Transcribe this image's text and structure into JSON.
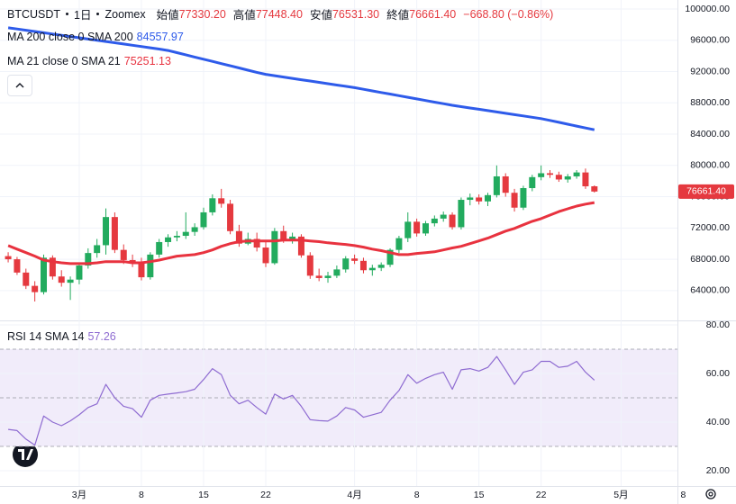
{
  "header": {
    "symbol": "BTCUSDT",
    "interval": "1日",
    "exchange": "Zoomex",
    "ohlc": [
      {
        "label": "始値",
        "value": "77330.20"
      },
      {
        "label": "高値",
        "value": "77448.40"
      },
      {
        "label": "安値",
        "value": "76531.30"
      },
      {
        "label": "終値",
        "value": "76661.40"
      }
    ],
    "change": "−668.80 (−0.86%)"
  },
  "chart_data": [
    {
      "type": "candlestick",
      "x": [
        52,
        53,
        54,
        55,
        56,
        57,
        58,
        59,
        60,
        61,
        62,
        63,
        64,
        65,
        66,
        67,
        68,
        69,
        70,
        71,
        72,
        73,
        74,
        75,
        76,
        77,
        78,
        79,
        80,
        81,
        82,
        83,
        84,
        85,
        86,
        87,
        88,
        89,
        90,
        91,
        92,
        93,
        94,
        95,
        96,
        97,
        98,
        99,
        100,
        101,
        102,
        103,
        104,
        105,
        106,
        107,
        108,
        109,
        110,
        111,
        112,
        113,
        114,
        115,
        116,
        117,
        118
      ],
      "xlim": [
        51.08,
        127.35
      ],
      "xticks": [
        {
          "value": 60,
          "label": "3月"
        },
        {
          "value": 67,
          "label": "8"
        },
        {
          "value": 74,
          "label": "15"
        },
        {
          "value": 81,
          "label": "22"
        },
        {
          "value": 91,
          "label": "4月"
        },
        {
          "value": 98,
          "label": "8"
        },
        {
          "value": 105,
          "label": "15"
        },
        {
          "value": 112,
          "label": "22"
        },
        {
          "value": 121,
          "label": "5月"
        },
        {
          "value": 128,
          "label": "8"
        }
      ],
      "ylim": [
        60300,
        101150
      ],
      "yticks": [
        {
          "value": 64000,
          "label": "64000.00"
        },
        {
          "value": 68000,
          "label": "68000.00"
        },
        {
          "value": 72000,
          "label": "72000.00"
        },
        {
          "value": 76000,
          "label": "76000.00"
        },
        {
          "value": 80000,
          "label": "80000.00"
        },
        {
          "value": 84000,
          "label": "84000.00"
        },
        {
          "value": 88000,
          "label": "88000.00"
        },
        {
          "value": 92000,
          "label": "92000.00"
        },
        {
          "value": 96000,
          "label": "96000.00"
        },
        {
          "value": 100000,
          "label": "100000.00"
        }
      ],
      "grid": true,
      "up_color": "#22ab5e",
      "down_color": "#e5393f",
      "open": [
        68400,
        68000,
        66300,
        64600,
        63800,
        68200,
        65800,
        65000,
        65400,
        67200,
        68800,
        69800,
        73400,
        69200,
        67900,
        67500,
        65700,
        68600,
        70200,
        70800,
        71000,
        71500,
        72100,
        74000,
        75800,
        75100,
        71600,
        70000,
        70600,
        69500,
        67500,
        71600,
        70500,
        70900,
        68500,
        65900,
        65600,
        65900,
        66700,
        68100,
        67800,
        66600,
        66900,
        67300,
        69200,
        70700,
        72800,
        71300,
        72600,
        73200,
        73700,
        72100,
        75600,
        75900,
        75400,
        76200,
        78600,
        76500,
        74600,
        77100,
        78500,
        79000,
        78800,
        78200,
        78600,
        79100,
        77330.2
      ],
      "high": [
        68900,
        68300,
        66800,
        65200,
        68600,
        68500,
        66600,
        65800,
        67500,
        69400,
        70600,
        74500,
        74000,
        69900,
        68600,
        68200,
        68900,
        70600,
        71200,
        71600,
        74000,
        72600,
        74600,
        76300,
        77000,
        75600,
        72400,
        71400,
        71400,
        70300,
        72000,
        72300,
        71400,
        71200,
        68900,
        66800,
        66400,
        67200,
        68400,
        68600,
        68200,
        67300,
        67600,
        69400,
        71000,
        74000,
        73200,
        72900,
        73600,
        74100,
        74000,
        75900,
        76400,
        76300,
        76500,
        80000,
        79000,
        77000,
        77400,
        78800,
        80000,
        79400,
        79200,
        78900,
        79400,
        79600,
        77448.4
      ],
      "low": [
        67600,
        66000,
        64200,
        62600,
        63500,
        65400,
        64500,
        62800,
        64800,
        66800,
        68200,
        68600,
        68800,
        67400,
        67000,
        65300,
        65400,
        68200,
        69600,
        70300,
        70600,
        71000,
        71800,
        73600,
        74600,
        71200,
        69600,
        69800,
        69000,
        67000,
        67300,
        70100,
        70000,
        68200,
        65500,
        65200,
        65000,
        65600,
        66300,
        67400,
        66200,
        65900,
        66500,
        67000,
        68800,
        70200,
        70900,
        71000,
        72200,
        72800,
        71800,
        71800,
        74900,
        75000,
        74800,
        75900,
        76000,
        74100,
        74300,
        76700,
        78100,
        78400,
        77900,
        77800,
        78300,
        77000,
        76531.3
      ],
      "close": [
        68000,
        66300,
        64600,
        63800,
        68200,
        65800,
        65000,
        65400,
        67200,
        68800,
        69800,
        73400,
        69200,
        67900,
        67500,
        65700,
        68600,
        70200,
        70800,
        71000,
        71500,
        72100,
        74000,
        75800,
        75100,
        71600,
        70000,
        70600,
        69500,
        67500,
        71600,
        70500,
        70900,
        68500,
        65900,
        65600,
        65900,
        66700,
        68100,
        67800,
        66600,
        66900,
        67300,
        69200,
        70700,
        72800,
        71300,
        72600,
        73200,
        73700,
        72100,
        75600,
        75900,
        75400,
        76200,
        78600,
        76500,
        74600,
        77100,
        78500,
        79000,
        78800,
        78200,
        78600,
        79100,
        77330.2,
        76661.4
      ],
      "last_label": "76661.40",
      "series": [
        {
          "name": "MA 200 close 0 SMA 200",
          "legend_value": "84557.97",
          "color": "#2e5bea",
          "values": [
            97600,
            97440,
            97280,
            97120,
            96960,
            96800,
            96640,
            96480,
            96320,
            96160,
            96000,
            95840,
            95680,
            95520,
            95360,
            95200,
            95040,
            94880,
            94700,
            94420,
            94140,
            93860,
            93580,
            93300,
            93020,
            92740,
            92460,
            92180,
            91900,
            91640,
            91470,
            91300,
            91130,
            90960,
            90790,
            90620,
            90450,
            90280,
            90110,
            89940,
            89735,
            89530,
            89325,
            89120,
            88915,
            88710,
            88505,
            88300,
            88095,
            87890,
            87685,
            87515,
            87345,
            87175,
            87005,
            86835,
            86665,
            86495,
            86325,
            86155,
            85985,
            85750,
            85510,
            85270,
            85030,
            84790,
            84557.97
          ]
        },
        {
          "name": "MA 21 close 0 SMA 21",
          "legend_value": "75251.13",
          "color": "#e8323f",
          "values": [
            69750,
            69300,
            68850,
            68400,
            67900,
            67700,
            67550,
            67450,
            67450,
            67450,
            67550,
            67700,
            67700,
            67700,
            67550,
            67550,
            67700,
            67900,
            68150,
            68400,
            68500,
            68600,
            68850,
            69200,
            69650,
            70000,
            70250,
            70350,
            70350,
            70350,
            70350,
            70450,
            70450,
            70450,
            70350,
            70250,
            70100,
            70000,
            69900,
            69750,
            69550,
            69300,
            69100,
            68850,
            68600,
            68600,
            68750,
            68850,
            68950,
            69200,
            69450,
            69650,
            70000,
            70350,
            70700,
            71150,
            71600,
            71950,
            72400,
            72850,
            73200,
            73650,
            74100,
            74450,
            74800,
            75050,
            75251.13
          ]
        }
      ]
    },
    {
      "type": "line",
      "ylim": [
        13.7,
        81.1
      ],
      "yticks": [
        {
          "value": 20,
          "label": "20.00"
        },
        {
          "value": 40,
          "label": "40.00"
        },
        {
          "value": 60,
          "label": "60.00"
        },
        {
          "value": 80,
          "label": "80.00"
        }
      ],
      "band_levels": [
        70,
        50,
        30
      ],
      "band_color": "#f1ecfa",
      "series": [
        {
          "name": "RSI 14 SMA 14",
          "legend_value": "57.26",
          "color": "#8e6bd1",
          "values": [
            37,
            36.5,
            33,
            30.5,
            42.5,
            40,
            38.5,
            40.5,
            43,
            46,
            47.5,
            55.5,
            50,
            46.5,
            45.5,
            42,
            49,
            51,
            51.5,
            52,
            52.5,
            53.5,
            57.5,
            62,
            59.5,
            51,
            47.5,
            49,
            46,
            43.3,
            51.5,
            49.5,
            51,
            46.5,
            41,
            40.6,
            40.4,
            42.5,
            46,
            45,
            42,
            43,
            44,
            49,
            53,
            59.5,
            56,
            58,
            59.5,
            60.5,
            53.5,
            61.5,
            62,
            61,
            62.5,
            67,
            61.5,
            55.5,
            60.5,
            61.5,
            65,
            65,
            62.5,
            63,
            65,
            60.5,
            57.26
          ]
        }
      ]
    }
  ]
}
